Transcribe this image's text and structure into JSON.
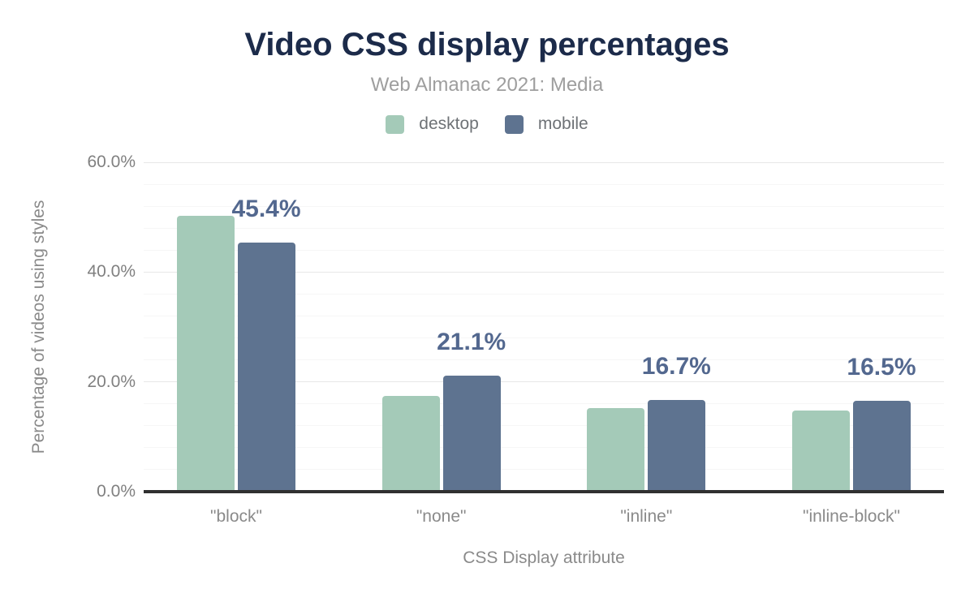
{
  "header": {
    "title": "Video CSS display percentages",
    "subtitle": "Web Almanac 2021: Media"
  },
  "legend": [
    {
      "label": "desktop",
      "color": "#a4cab8"
    },
    {
      "label": "mobile",
      "color": "#5e7390"
    }
  ],
  "chart_data": {
    "type": "bar",
    "title": "Video CSS display percentages",
    "subtitle": "Web Almanac 2021: Media",
    "categories": [
      "\"block\"",
      "\"none\"",
      "\"inline\"",
      "\"inline-block\""
    ],
    "series": [
      {
        "name": "desktop",
        "color": "#a4cab8",
        "values": [
          50.3,
          17.5,
          15.3,
          14.8
        ]
      },
      {
        "name": "mobile",
        "color": "#5e7390",
        "values": [
          45.4,
          21.1,
          16.7,
          16.5
        ]
      }
    ],
    "data_labels": [
      "45.4%",
      "21.1%",
      "16.7%",
      "16.5%"
    ],
    "data_label_series": "mobile",
    "xlabel": "CSS Display attribute",
    "ylabel": "Percentage of videos using styles",
    "y_ticks": [
      "0.0%",
      "20.0%",
      "40.0%",
      "60.0%"
    ],
    "ylim": [
      0,
      60
    ],
    "grid": {
      "major_step": 20,
      "minor_step": 4,
      "on": true
    },
    "legend_position": "top",
    "colors": {
      "title": "#1c2b4a",
      "subtitle": "#9e9e9e",
      "data_label": "#53688f",
      "tick_label": "#808080",
      "axis_title": "#8a8a8a",
      "axis_line": "#303030",
      "grid_major": "#e8e8e8",
      "grid_minor": "#f6f6f6"
    }
  }
}
